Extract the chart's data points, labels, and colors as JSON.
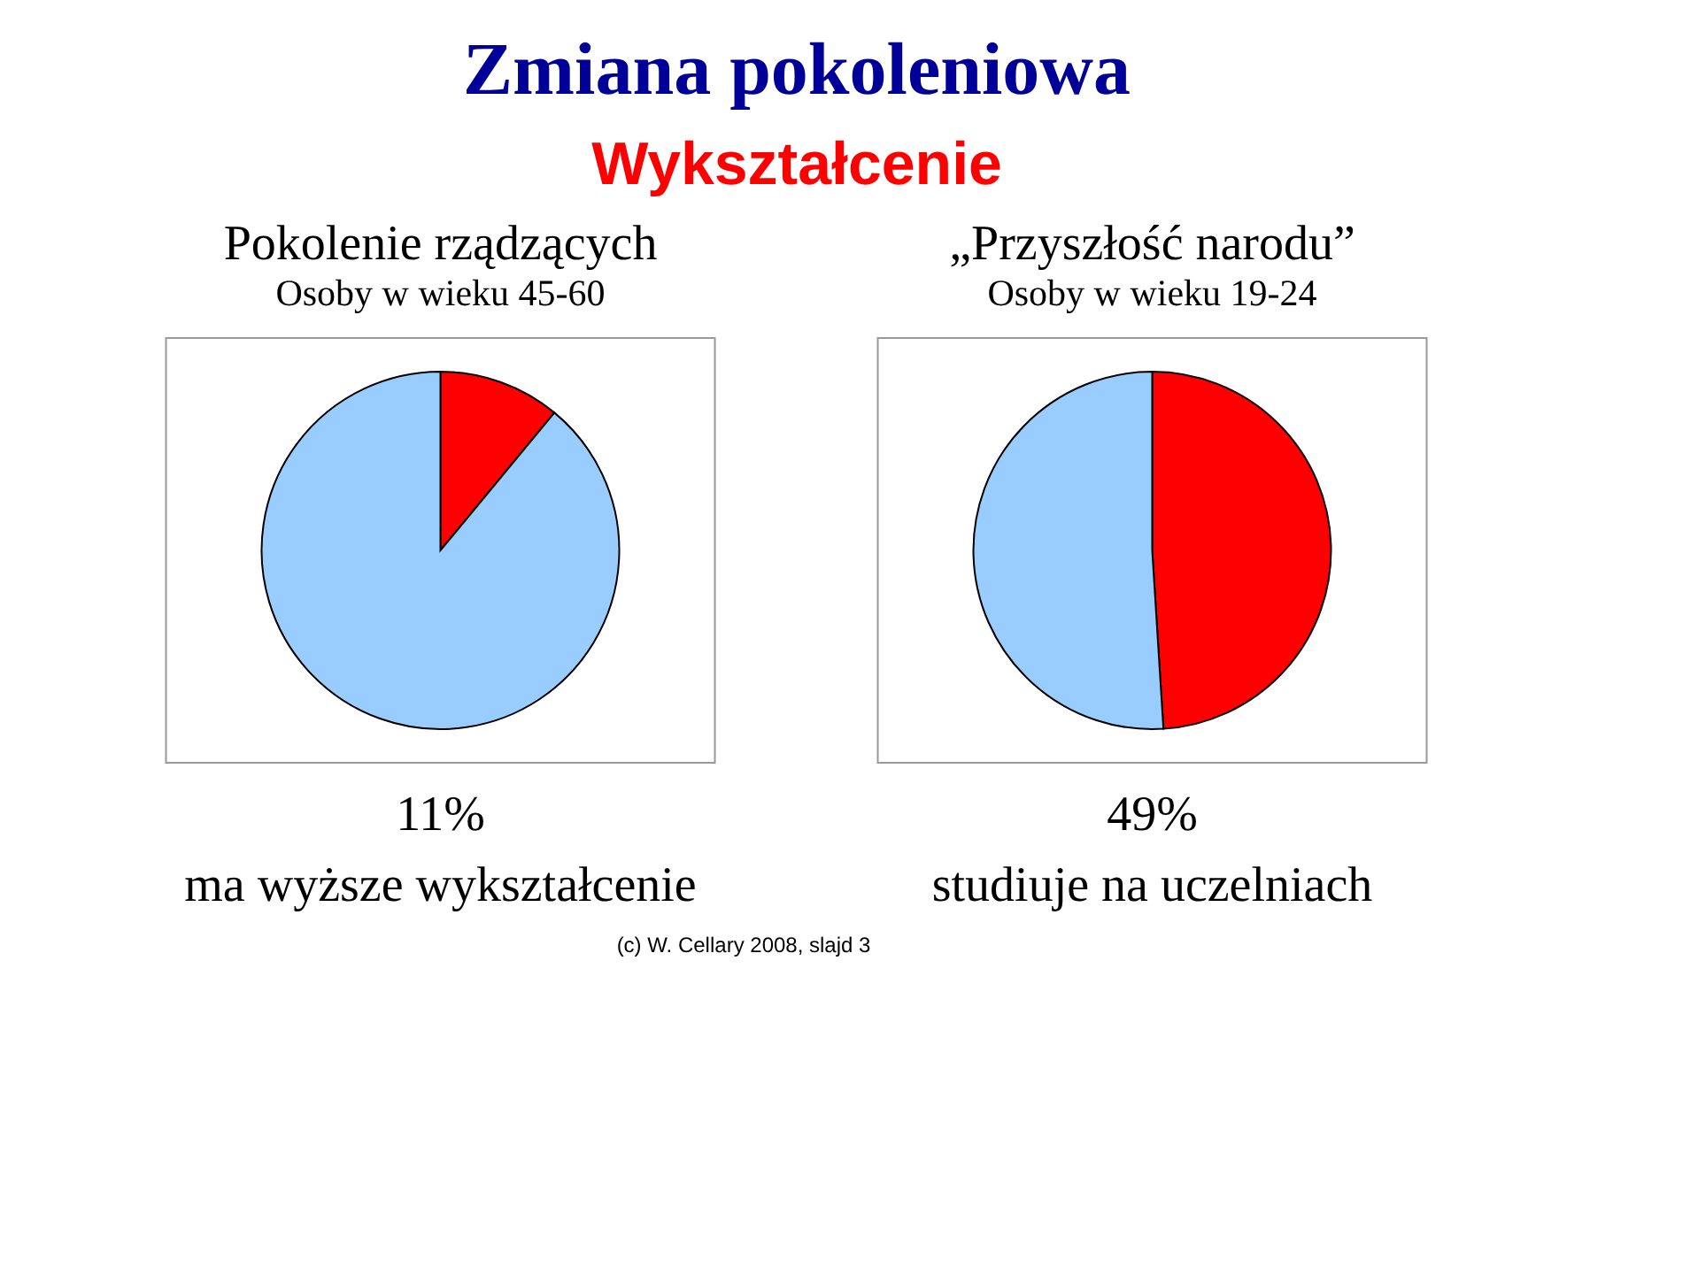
{
  "chart_data": [
    {
      "type": "other",
      "title": "Zmiana pokoleniowa",
      "subtitle": "Wykształcenie",
      "annotations": [
        "(c) W. Cellary 2008, slajd 3"
      ]
    },
    {
      "type": "pie",
      "title": "Pokolenie rządzących",
      "subtitle": "Osoby w wieku 45-60",
      "categories": [
        null,
        null
      ],
      "values": [
        11,
        89
      ],
      "colors": [
        "#ff0000",
        "#99ccff"
      ],
      "annotations": [
        "11%",
        "ma wyższe wykształcenie"
      ]
    },
    {
      "type": "pie",
      "title": "„Przyszłość narodu”",
      "subtitle": "Osoby w wieku 19-24",
      "categories": [
        null,
        null
      ],
      "values": [
        49,
        51
      ],
      "colors": [
        "#ff0000",
        "#99ccff"
      ],
      "annotations": [
        "49%",
        "studiuje na uczelniach"
      ]
    }
  ]
}
